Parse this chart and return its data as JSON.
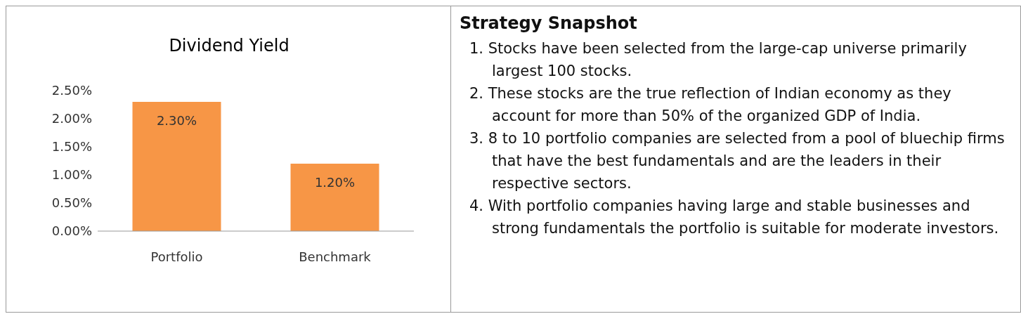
{
  "chart_data": [
    {
      "type": "bar",
      "title": "Dividend Yield",
      "categories": [
        "Portfolio",
        "Benchmark"
      ],
      "values": [
        2.3,
        1.2
      ],
      "color": "#f79646",
      "value_labels": [
        "2.30%",
        "1.20%"
      ],
      "ylim": [
        0,
        2.5
      ],
      "yticks": [
        {
          "value": 0,
          "label": "0.00%"
        },
        {
          "value": 0.5,
          "label": "0.50%"
        },
        {
          "value": 1,
          "label": "1.00%"
        },
        {
          "value": 1.5,
          "label": "1.50%"
        },
        {
          "value": 2,
          "label": "2.00%"
        },
        {
          "value": 2.5,
          "label": "2.50%"
        }
      ],
      "grid": false
    },
    {
      "type": "other",
      "title": "Strategy Snapshot",
      "annotations": [
        "1. Stocks have been selected from the large-cap universe primarily largest 100 stocks.",
        "2. These stocks are the true reflection of Indian economy as they account for more than 50% of the organized GDP of India.",
        "3. 8 to 10 portfolio companies are selected from a pool of bluechip firms that have the best fundamentals and are the leaders in their respective sectors.",
        "4. With portfolio companies having large and stable businesses and strong fundamentals the portfolio is suitable for moderate investors."
      ]
    }
  ]
}
